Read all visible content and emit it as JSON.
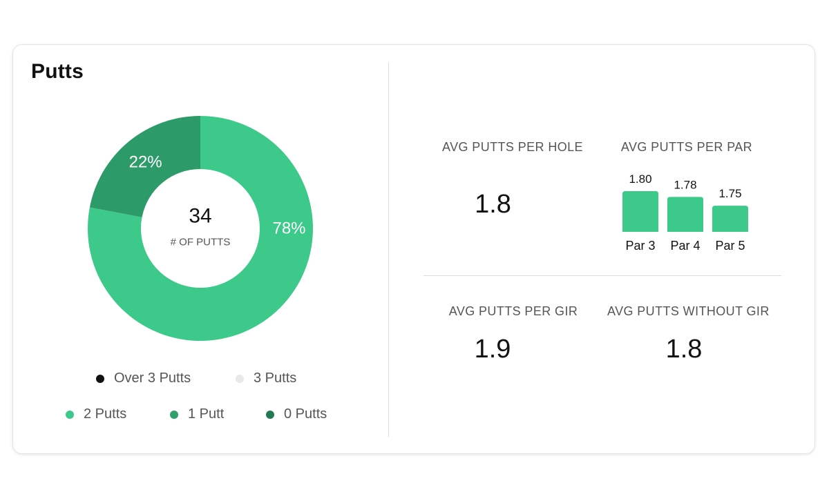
{
  "card": {
    "title": "Putts"
  },
  "donut": {
    "center_value": "34",
    "center_label": "# OF PUTTS",
    "segment_labels": [
      "78%",
      "22%"
    ]
  },
  "legend": [
    {
      "label": "Over 3 Putts",
      "color": "#111111"
    },
    {
      "label": "3 Putts",
      "color": "#e8e8e8"
    },
    {
      "label": "2 Putts",
      "color": "#3cc98a"
    },
    {
      "label": "1 Putt",
      "color": "#2f9f6c"
    },
    {
      "label": "0 Putts",
      "color": "#227a52"
    }
  ],
  "stats": {
    "per_hole": {
      "label": "AVG PUTTS PER HOLE",
      "value": "1.8"
    },
    "per_par": {
      "label": "AVG PUTTS PER PAR"
    },
    "per_gir": {
      "label": "AVG PUTTS PER GIR",
      "value": "1.9"
    },
    "without_gir": {
      "label": "AVG PUTTS WITHOUT GIR",
      "value": "1.8"
    }
  },
  "chart_data": [
    {
      "type": "pie",
      "categories": [
        "Over 3 Putts",
        "3 Putts",
        "2 Putts",
        "1 Putt",
        "0 Putts"
      ],
      "values": [
        0,
        0,
        78,
        22,
        0
      ],
      "value_labels": [
        "",
        "",
        "78%",
        "22%",
        ""
      ],
      "colors": [
        "#111111",
        "#e8e8e8",
        "#3cc98a",
        "#2d9a69",
        "#227a52"
      ],
      "title": "",
      "legend": "bottom"
    },
    {
      "type": "bar",
      "categories": [
        "Par 3",
        "Par 4",
        "Par 5"
      ],
      "values": [
        1.8,
        1.78,
        1.75
      ],
      "value_labels": [
        "1.80",
        "1.78",
        "1.75"
      ],
      "color": "#3cc98a",
      "title": "",
      "xlabel": "",
      "ylabel": ""
    }
  ]
}
